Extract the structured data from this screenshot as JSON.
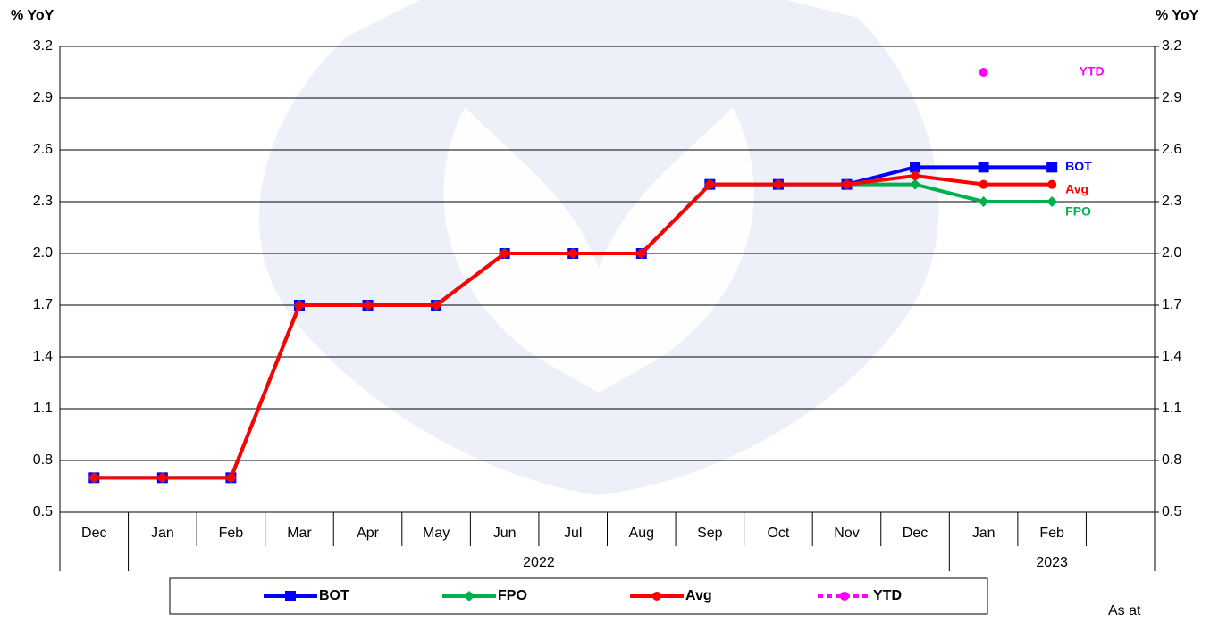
{
  "chart_data": {
    "type": "line",
    "left_axis_label": "% YoY",
    "right_axis_label": "% YoY",
    "categories": [
      "Dec",
      "Jan",
      "Feb",
      "Mar",
      "Apr",
      "May",
      "Jun",
      "Jul",
      "Aug",
      "Sep",
      "Oct",
      "Nov",
      "Dec",
      "Jan",
      "Feb",
      null
    ],
    "year_groups": [
      {
        "label": "2022",
        "start": 1,
        "end": 12
      },
      {
        "label": "2023",
        "start": 13,
        "end": 15
      }
    ],
    "series": [
      {
        "name": "BOT",
        "color": "#0000ff",
        "marker": "square",
        "values": [
          0.7,
          0.7,
          0.7,
          1.7,
          1.7,
          1.7,
          2.0,
          2.0,
          2.0,
          2.4,
          2.4,
          2.4,
          2.5,
          2.5,
          2.5,
          null
        ]
      },
      {
        "name": "FPO",
        "color": "#00b050",
        "marker": "diamond",
        "values": [
          0.7,
          0.7,
          0.7,
          1.7,
          1.7,
          1.7,
          2.0,
          2.0,
          2.0,
          2.4,
          2.4,
          2.4,
          2.4,
          2.3,
          2.3,
          null
        ]
      },
      {
        "name": "Avg",
        "color": "#ff0000",
        "marker": "circle",
        "values": [
          0.7,
          0.7,
          0.7,
          1.7,
          1.7,
          1.7,
          2.0,
          2.0,
          2.0,
          2.4,
          2.4,
          2.4,
          2.45,
          2.4,
          2.4,
          null
        ]
      },
      {
        "name": "YTD",
        "color": "#ff00ff",
        "marker": "circle",
        "dashed": true,
        "values": [
          null,
          null,
          null,
          null,
          null,
          null,
          null,
          null,
          null,
          null,
          null,
          null,
          null,
          3.05,
          null,
          null
        ]
      }
    ],
    "ylim": [
      0.5,
      3.2
    ],
    "yticks": [
      0.5,
      0.8,
      1.1,
      1.4,
      1.7,
      {
        "value": 2.0,
        "label": "2.0"
      },
      2.3,
      2.6,
      2.9,
      3.2
    ],
    "y2lim": [
      0.5,
      3.2
    ],
    "y2ticks": [
      0.5,
      0.8,
      1.1,
      1.4,
      1.7,
      {
        "value": 2.0,
        "label": "2.0"
      },
      2.3,
      2.6,
      2.9,
      3.2
    ],
    "grid": true,
    "footnote": "As at"
  }
}
